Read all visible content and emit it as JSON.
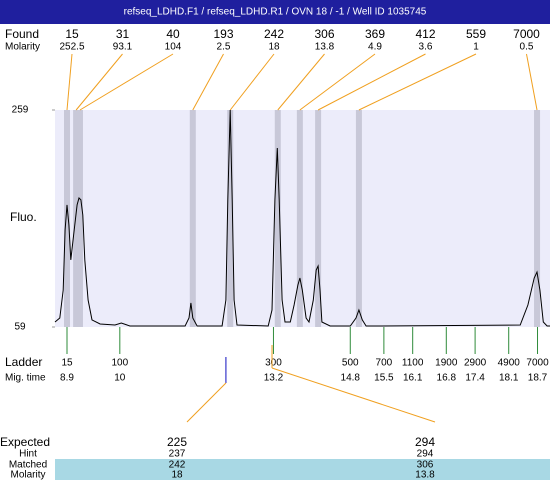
{
  "header": "refseq_LDHD.F1 / refseq_LDHD.R1 / OVN 18 / -1 / Well ID 1035745",
  "chart_data": {
    "type": "line",
    "ylabel": "Fluo.",
    "ylim": [
      59,
      259
    ],
    "yticks": [
      59,
      259
    ],
    "xlim": [
      8.65,
      18.96
    ],
    "x": [
      8.65,
      8.75,
      8.82,
      8.86,
      8.9,
      8.94,
      8.98,
      9.05,
      9.11,
      9.15,
      9.19,
      9.23,
      9.27,
      9.34,
      9.42,
      9.59,
      9.9,
      10.03,
      10.21,
      11.36,
      11.44,
      11.48,
      11.52,
      11.61,
      12.13,
      12.21,
      12.25,
      12.3,
      12.34,
      12.38,
      12.44,
      13.09,
      13.17,
      13.23,
      13.28,
      13.32,
      13.38,
      13.44,
      13.55,
      13.63,
      13.71,
      13.75,
      13.8,
      13.88,
      13.94,
      14.03,
      14.09,
      14.13,
      14.17,
      14.21,
      14.38,
      14.8,
      14.92,
      14.98,
      15.05,
      15.13,
      15.42,
      18.34,
      18.5,
      18.63,
      18.69,
      18.75,
      18.82,
      18.9,
      18.96
    ],
    "values": [
      63.6,
      67.3,
      93.1,
      148.4,
      171.5,
      153,
      120.8,
      148.4,
      171.5,
      177.9,
      176.1,
      162.2,
      120.8,
      83.9,
      65.5,
      61.8,
      60.8,
      62.7,
      59.9,
      59.9,
      67.3,
      81.1,
      67.3,
      59.9,
      59.9,
      83.9,
      176.1,
      259,
      176.1,
      83.9,
      60.8,
      59.9,
      74.7,
      176.1,
      224,
      176.1,
      83.9,
      63.6,
      63.6,
      79.3,
      97.7,
      104.2,
      93.1,
      67.3,
      63.6,
      83.9,
      111.5,
      115.2,
      93.1,
      63.6,
      59.9,
      59.9,
      67.3,
      74.7,
      65.5,
      59.9,
      59.9,
      60.8,
      79.3,
      104.2,
      109.7,
      93.1,
      63.6,
      59.9,
      59.9
    ],
    "found": {
      "label": "Found",
      "sizes": [
        15,
        31,
        40,
        193,
        242,
        306,
        369,
        412,
        559,
        7000
      ],
      "molarity_label": "Molarity",
      "molarity": [
        252.5,
        93.1,
        104,
        2.5,
        18,
        13.8,
        4.9,
        3.6,
        1,
        0.5
      ],
      "x": [
        8.9,
        9.09,
        9.17,
        11.52,
        12.3,
        13.29,
        13.75,
        14.13,
        14.98,
        18.69
      ]
    },
    "ladder": {
      "label": "Ladder",
      "time_label": "Mig. time",
      "sizes": [
        15,
        100,
        300,
        500,
        700,
        1100,
        1900,
        2900,
        4900,
        7000
      ],
      "x": [
        8.9,
        10,
        13.2,
        14.8,
        15.5,
        16.1,
        16.8,
        17.4,
        18.1,
        18.7
      ]
    },
    "expected": {
      "label": "Expected",
      "values": [
        225,
        294
      ],
      "x": [
        12.21,
        13.17
      ],
      "hint_label": "Hint",
      "hint": [
        237,
        294
      ],
      "matched_label": "Matched",
      "matched": [
        242,
        306
      ],
      "molarity_label": "Molarity",
      "molarity": [
        18,
        13.8
      ]
    }
  }
}
